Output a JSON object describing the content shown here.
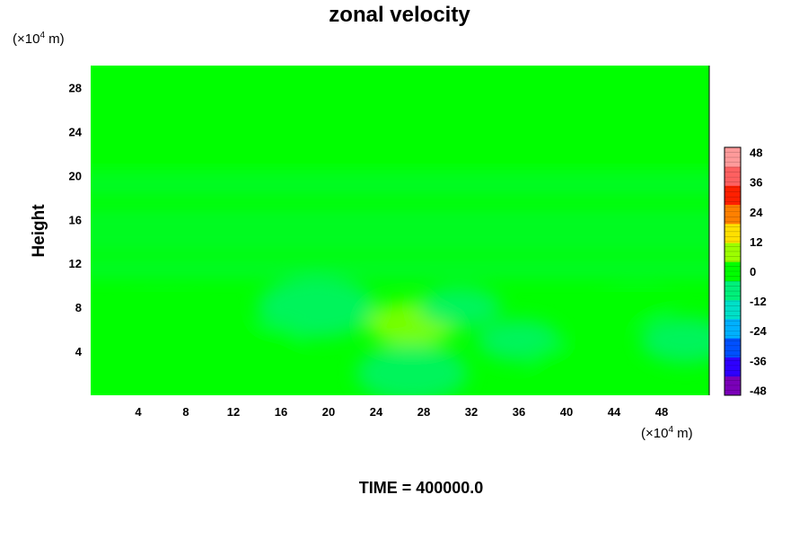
{
  "chart_data": {
    "type": "heatmap",
    "title": "zonal velocity",
    "ylabel": "Height",
    "y_unit_base": "(×10",
    "y_unit_exp": "4",
    "y_unit_tail": " m)",
    "x_unit_base": "(×10",
    "x_unit_exp": "4",
    "x_unit_tail": " m)",
    "xlim": [
      0,
      52
    ],
    "ylim": [
      0,
      30
    ],
    "x_ticks": [
      "4",
      "8",
      "12",
      "16",
      "20",
      "24",
      "28",
      "32",
      "36",
      "40",
      "44",
      "48"
    ],
    "y_ticks": [
      "4",
      "8",
      "12",
      "16",
      "20",
      "24",
      "28"
    ],
    "colorbar": {
      "range": [
        -50,
        50
      ],
      "tick_values": [
        48,
        36,
        24,
        12,
        0,
        -12,
        -24,
        -36,
        -48
      ],
      "tick_labels": [
        "48",
        "36",
        "24",
        "12",
        "0",
        "-12",
        "-24",
        "-36",
        "-48"
      ],
      "colors": [
        "#7a00b8",
        "#2e00ff",
        "#0050ff",
        "#00b0ff",
        "#00e0c8",
        "#00f07a",
        "#00ff00",
        "#9cff00",
        "#ffe000",
        "#ff8000",
        "#ff2000",
        "#ff6060",
        "#ff9a9a"
      ]
    },
    "field_features": [
      {
        "x": 19,
        "y": 8,
        "value": -9
      },
      {
        "x": 27,
        "y": 6.5,
        "value": 5
      },
      {
        "x": 27,
        "y": 2,
        "value": -8
      },
      {
        "x": 6,
        "y": 7,
        "value": 3
      },
      {
        "x": 10,
        "y": 3,
        "value": 2
      },
      {
        "x": 36,
        "y": 5,
        "value": -4
      },
      {
        "x": 50,
        "y": 5,
        "value": -5
      },
      {
        "x": 46,
        "y": 8,
        "value": 2
      },
      {
        "x": 31,
        "y": 8,
        "value": -4
      },
      {
        "x": 15,
        "y": 5,
        "value": -2
      },
      {
        "x": 40,
        "y": 3,
        "value": 3
      }
    ],
    "bands": [
      {
        "y": 11.5,
        "value": -5
      },
      {
        "y": 14,
        "value": -6
      },
      {
        "y": 16,
        "value": -5
      },
      {
        "y": 19,
        "value": -4
      },
      {
        "y": 20.8,
        "value": -3
      }
    ]
  },
  "footer": {
    "time_label": "TIME = 400000.0"
  }
}
